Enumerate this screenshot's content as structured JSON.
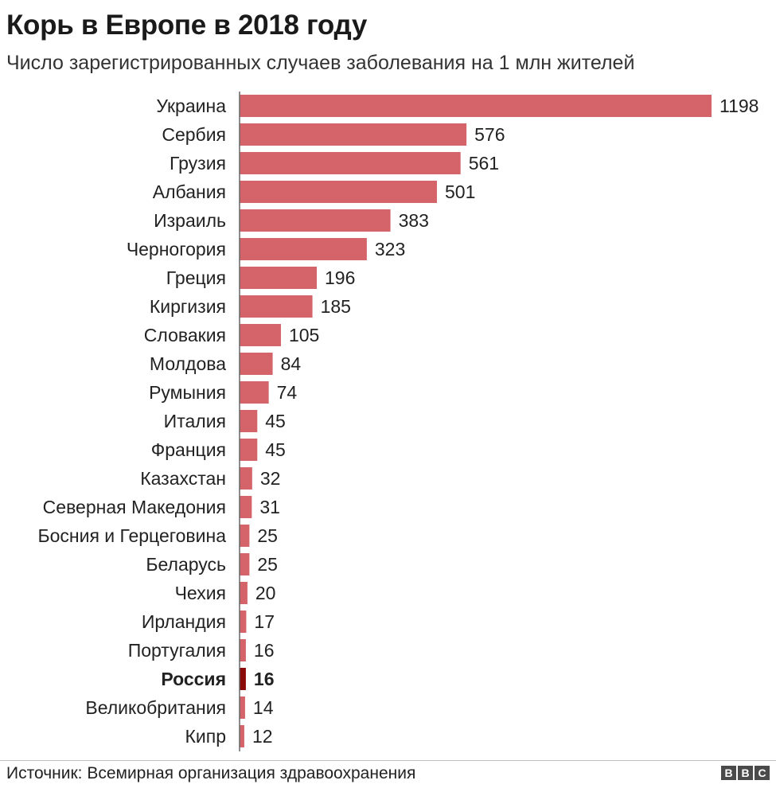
{
  "title": "Корь в Европе в 2018 году",
  "subtitle": "Число зарегистрированных случаев заболевания на 1 млн жителей",
  "source": "Источник: Всемирная организация здравоохранения",
  "logo": [
    "B",
    "B",
    "C"
  ],
  "colors": {
    "bar": "#d4646a",
    "highlight": "#8b0a0a",
    "axis": "#666666",
    "text": "#222222"
  },
  "chart_data": {
    "type": "bar",
    "orientation": "horizontal",
    "categories": [
      "Украина",
      "Сербия",
      "Грузия",
      "Албания",
      "Израиль",
      "Черногория",
      "Греция",
      "Киргизия",
      "Словакия",
      "Молдова",
      "Румыния",
      "Италия",
      "Франция",
      "Казахстан",
      "Северная Македония",
      "Босния и Герцеговина",
      "Беларусь",
      "Чехия",
      "Ирландия",
      "Португалия",
      "Россия",
      "Великобритания",
      "Кипр"
    ],
    "values": [
      1198,
      576,
      561,
      501,
      383,
      323,
      196,
      185,
      105,
      84,
      74,
      45,
      45,
      32,
      31,
      25,
      25,
      20,
      17,
      16,
      16,
      14,
      12
    ],
    "highlight": "Россия",
    "title": "Корь в Европе в 2018 году",
    "subtitle": "Число зарегистрированных случаев заболевания на 1 млн жителей",
    "xlim": [
      0,
      1198
    ],
    "grid": false,
    "legend": "none"
  }
}
